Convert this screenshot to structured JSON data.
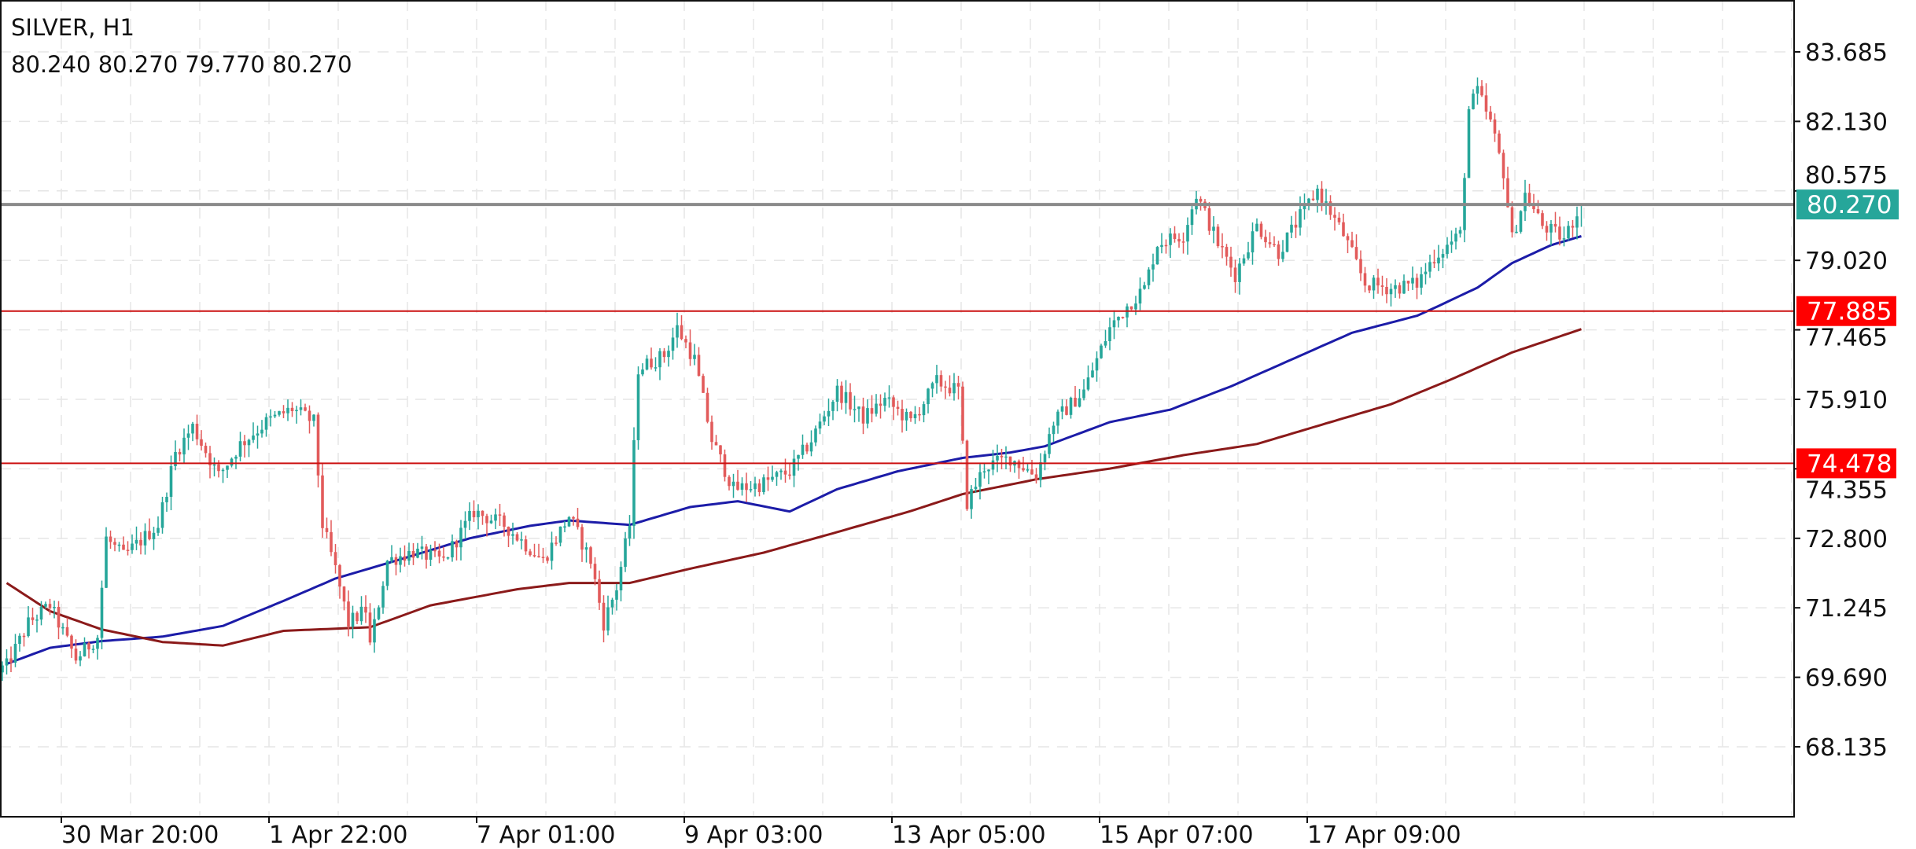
{
  "header": {
    "symbol_timeframe": "SILVER, H1",
    "ohlc": "80.240 80.270 79.770 80.270"
  },
  "colors": {
    "bull": "#26a69a",
    "bear": "#e25b5b",
    "ma_fast": "#1c1ca8",
    "ma_slow": "#8b1a1a",
    "current_price_line": "#8a8a8a",
    "current_price_tag": "#26a69a",
    "level_line": "#cc1111",
    "level_tag": "#ff0000",
    "grid": "#e6e6e6"
  },
  "chart_data": {
    "type": "candlestick",
    "title": "SILVER, H1",
    "xlabel": "",
    "ylabel": "",
    "ylim": [
      66.569,
      84.846
    ],
    "grid": true,
    "y_ticks": [
      "83.685",
      "82.130",
      "80.575",
      "79.020",
      "77.465",
      "75.910",
      "74.355",
      "72.800",
      "71.245",
      "69.690",
      "68.135"
    ],
    "x_ticks": [
      "30 Mar 20:00",
      "1 Apr 22:00",
      "7 Apr 01:00",
      "9 Apr 03:00",
      "13 Apr 05:00",
      "15 Apr 07:00",
      "17 Apr 09:00"
    ],
    "bar_count": 366,
    "last_candle": {
      "open": 80.24,
      "high": 80.27,
      "low": 79.77,
      "close": 80.27
    },
    "close_path_bar_price": [
      [
        0,
        69.9
      ],
      [
        1,
        69.94
      ],
      [
        6,
        70.9
      ],
      [
        11,
        71.3
      ],
      [
        17,
        70.1
      ],
      [
        22,
        70.6
      ],
      [
        24,
        72.8
      ],
      [
        28,
        72.4
      ],
      [
        36,
        73.1
      ],
      [
        40,
        74.7
      ],
      [
        44,
        75.3
      ],
      [
        50,
        74.2
      ],
      [
        55,
        74.9
      ],
      [
        61,
        75.4
      ],
      [
        67,
        75.7
      ],
      [
        72,
        75.4
      ],
      [
        74,
        73.1
      ],
      [
        77,
        72.1
      ],
      [
        80,
        70.9
      ],
      [
        84,
        71.2
      ],
      [
        85,
        70.4
      ],
      [
        89,
        72.3
      ],
      [
        95,
        72.5
      ],
      [
        102,
        72.3
      ],
      [
        109,
        73.4
      ],
      [
        116,
        73.1
      ],
      [
        125,
        72.3
      ],
      [
        131,
        73.3
      ],
      [
        136,
        72.3
      ],
      [
        139,
        70.9
      ],
      [
        142,
        71.7
      ],
      [
        145,
        73.1
      ],
      [
        147,
        76.6
      ],
      [
        153,
        76.9
      ],
      [
        156,
        77.5
      ],
      [
        160,
        76.8
      ],
      [
        164,
        75.0
      ],
      [
        169,
        73.9
      ],
      [
        175,
        74.0
      ],
      [
        182,
        74.3
      ],
      [
        187,
        75.0
      ],
      [
        193,
        76.1
      ],
      [
        199,
        75.5
      ],
      [
        204,
        75.9
      ],
      [
        210,
        75.4
      ],
      [
        216,
        76.3
      ],
      [
        221,
        76.1
      ],
      [
        223,
        73.6
      ],
      [
        227,
        74.4
      ],
      [
        233,
        74.6
      ],
      [
        239,
        74.2
      ],
      [
        243,
        75.4
      ],
      [
        250,
        76.1
      ],
      [
        256,
        77.5
      ],
      [
        260,
        78.0
      ],
      [
        264,
        78.4
      ],
      [
        267,
        79.4
      ],
      [
        273,
        79.6
      ],
      [
        276,
        80.5
      ],
      [
        281,
        79.4
      ],
      [
        285,
        78.7
      ],
      [
        290,
        79.8
      ],
      [
        295,
        79.2
      ],
      [
        300,
        80.0
      ],
      [
        304,
        80.6
      ],
      [
        310,
        79.6
      ],
      [
        315,
        78.5
      ],
      [
        321,
        78.4
      ],
      [
        327,
        78.5
      ],
      [
        331,
        79.1
      ],
      [
        337,
        79.6
      ],
      [
        339,
        82.4
      ],
      [
        341,
        82.8
      ],
      [
        344,
        82.1
      ],
      [
        347,
        81.0
      ],
      [
        349,
        79.5
      ],
      [
        352,
        80.5
      ],
      [
        356,
        79.8
      ],
      [
        361,
        79.5
      ],
      [
        365,
        80.27
      ]
    ],
    "series": [
      {
        "role": "moving-average-fast",
        "points_bar_price": [
          [
            1,
            69.99
          ],
          [
            11,
            70.35
          ],
          [
            23,
            70.5
          ],
          [
            37,
            70.6
          ],
          [
            51,
            70.84
          ],
          [
            65,
            71.4
          ],
          [
            77,
            71.9
          ],
          [
            91,
            72.3
          ],
          [
            108,
            72.8
          ],
          [
            122,
            73.08
          ],
          [
            131,
            73.2
          ],
          [
            145,
            73.1
          ],
          [
            159,
            73.5
          ],
          [
            170,
            73.63
          ],
          [
            182,
            73.4
          ],
          [
            193,
            73.9
          ],
          [
            207,
            74.3
          ],
          [
            222,
            74.6
          ],
          [
            233,
            74.72
          ],
          [
            241,
            74.86
          ],
          [
            256,
            75.4
          ],
          [
            270,
            75.68
          ],
          [
            284,
            76.2
          ],
          [
            298,
            76.8
          ],
          [
            312,
            77.4
          ],
          [
            327,
            77.78
          ],
          [
            332,
            78.0
          ],
          [
            341,
            78.41
          ],
          [
            349,
            78.96
          ],
          [
            358,
            79.36
          ],
          [
            365,
            79.56
          ]
        ]
      },
      {
        "role": "moving-average-slow",
        "points_bar_price": [
          [
            1,
            71.8
          ],
          [
            11,
            71.17
          ],
          [
            23,
            70.76
          ],
          [
            37,
            70.48
          ],
          [
            51,
            70.4
          ],
          [
            65,
            70.73
          ],
          [
            85,
            70.81
          ],
          [
            99,
            71.3
          ],
          [
            119,
            71.66
          ],
          [
            131,
            71.8
          ],
          [
            145,
            71.8
          ],
          [
            159,
            72.12
          ],
          [
            176,
            72.48
          ],
          [
            193,
            72.94
          ],
          [
            210,
            73.41
          ],
          [
            222,
            73.79
          ],
          [
            239,
            74.12
          ],
          [
            256,
            74.36
          ],
          [
            273,
            74.66
          ],
          [
            290,
            74.91
          ],
          [
            307,
            75.4
          ],
          [
            321,
            75.8
          ],
          [
            335,
            76.36
          ],
          [
            349,
            76.96
          ],
          [
            365,
            77.48
          ]
        ]
      }
    ],
    "horizontal_lines": [
      {
        "role": "current-price",
        "price": 80.27,
        "label": "80.270"
      },
      {
        "role": "level",
        "price": 77.885,
        "label": "77.885"
      },
      {
        "role": "level",
        "price": 74.478,
        "label": "74.478"
      }
    ]
  }
}
